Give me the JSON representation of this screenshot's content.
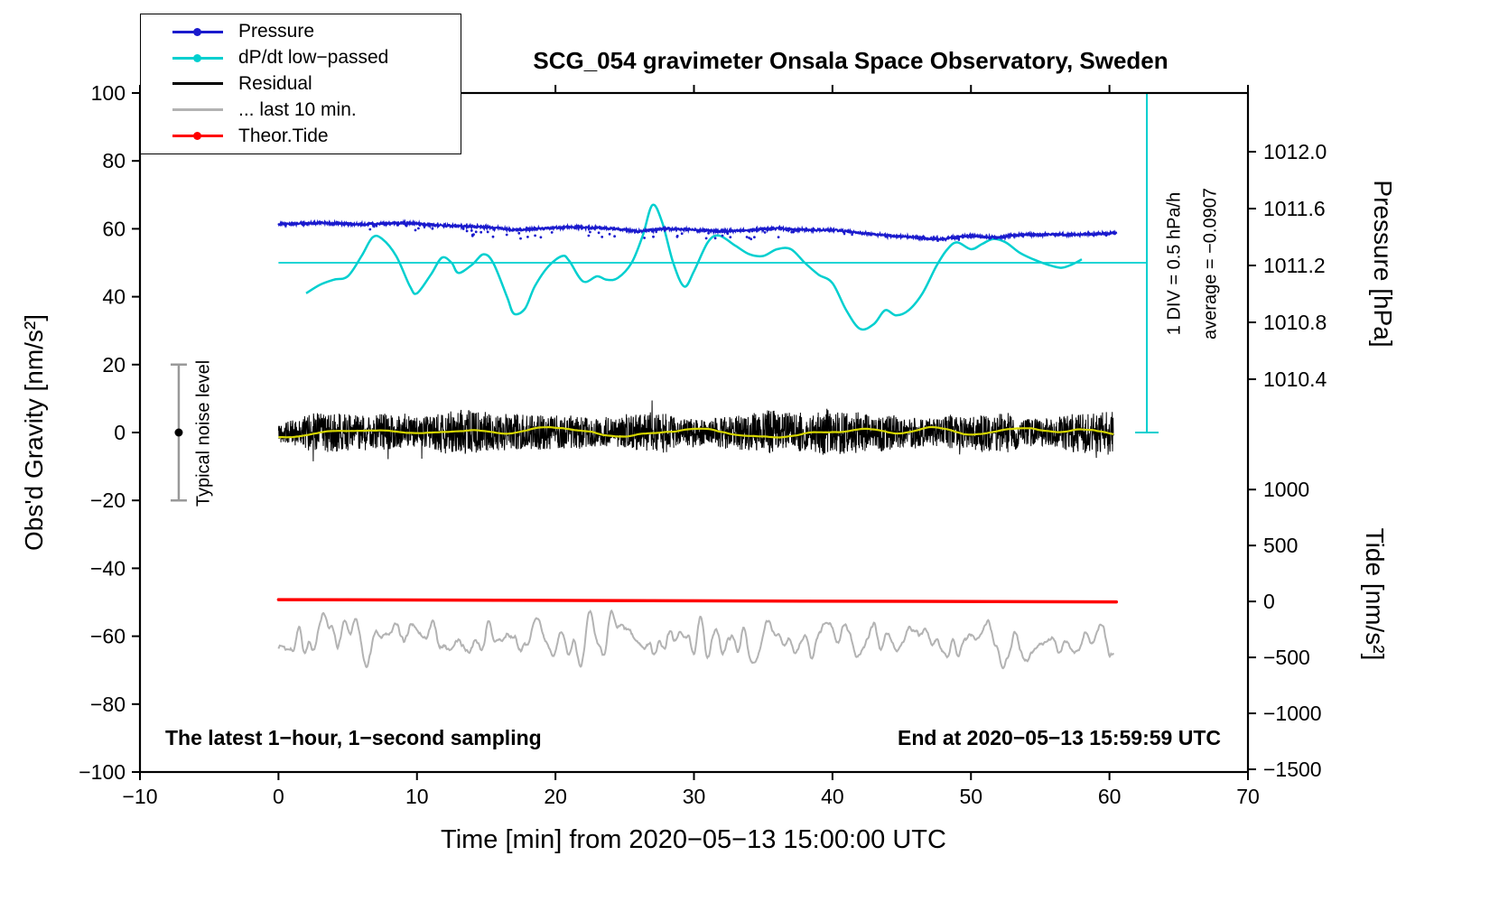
{
  "legend": {
    "items": [
      {
        "label": "Pressure",
        "color": "#1a1acd",
        "dot": true
      },
      {
        "label": "dP/dt low−passed",
        "color": "#00cfcf",
        "dot": true
      },
      {
        "label": "Residual",
        "color": "#000000",
        "dot": false
      },
      {
        "label": "... last 10 min.",
        "color": "#b3b3b3",
        "dot": false
      },
      {
        "label": "Theor.Tide",
        "color": "#ff0000",
        "dot": true
      }
    ]
  },
  "footer": {
    "left": "The latest 1−hour, 1−second sampling",
    "right": "End at 2020−05−13 15:59:59 UTC"
  },
  "chart_data": {
    "type": "line",
    "title": "SCG_054 gravimeter Onsala Space Observatory, Sweden",
    "xlabel": "Time [min] from 2020−05−13 15:00:00 UTC",
    "ylabel_left": "Obs'd Gravity [nm/s²]",
    "ylabel_right_pressure": "Pressure [hPa]",
    "ylabel_right_tide": "Tide [nm/s²]",
    "x_axis": {
      "min": -10,
      "max": 70,
      "tick_values": [
        -10,
        0,
        10,
        20,
        30,
        40,
        50,
        60,
        70
      ],
      "tick_labels": [
        "−10",
        "0",
        "10",
        "20",
        "30",
        "40",
        "50",
        "60",
        "70"
      ]
    },
    "y_axis_left": {
      "min": -100,
      "max": 100,
      "tick_values": [
        -100,
        -80,
        -60,
        -40,
        -20,
        0,
        20,
        40,
        60,
        80,
        100
      ],
      "tick_labels": [
        "−100",
        "−80",
        "−60",
        "−40",
        "−20",
        "0",
        "20",
        "40",
        "60",
        "80",
        "100"
      ]
    },
    "pressure_axis": {
      "tick_values": [
        1012.0,
        1011.6,
        1011.2,
        1010.8,
        1010.4
      ],
      "tick_labels": [
        "1012.0",
        "1011.6",
        "1011.2",
        "1010.8",
        "1010.4"
      ],
      "hpa_ref": 1010.4,
      "gravity_ref": 15.7,
      "gravity_per_hpa": 41.875
    },
    "tide_axis": {
      "tick_values": [
        1000,
        500,
        0,
        -500,
        -1000,
        -1500
      ],
      "tick_labels": [
        "1000",
        "500",
        "0",
        "−500",
        "−1000",
        "−1500"
      ],
      "tide_ref": 1000,
      "gravity_ref": -16.8,
      "gravity_per_unit": 0.03296
    },
    "annotations": {
      "scalebar_label_1": "1 DIV = 0.5 hPa/h",
      "scalebar_label_2": "average = −0.0907",
      "noise_label": "Typical noise level"
    },
    "series": {
      "pressure": {
        "name": "Pressure",
        "color": "#1a1acd",
        "unit": "hPa",
        "x": [
          0,
          3,
          6,
          9,
          12,
          15,
          17,
          19,
          21,
          24,
          26,
          28,
          30,
          32,
          34,
          36,
          38,
          40,
          42,
          44,
          45,
          47,
          48,
          49,
          50,
          51,
          52,
          53,
          54,
          55,
          56,
          57,
          58,
          59,
          60.5
        ],
        "values": [
          1011.49,
          1011.5,
          1011.49,
          1011.5,
          1011.48,
          1011.47,
          1011.45,
          1011.46,
          1011.47,
          1011.46,
          1011.44,
          1011.46,
          1011.45,
          1011.44,
          1011.45,
          1011.46,
          1011.45,
          1011.45,
          1011.43,
          1011.41,
          1011.405,
          1011.39,
          1011.385,
          1011.4,
          1011.41,
          1011.4,
          1011.395,
          1011.41,
          1011.42,
          1011.415,
          1011.42,
          1011.415,
          1011.42,
          1011.42,
          1011.43
        ],
        "jitter_hpa": 0.007
      },
      "dpdt": {
        "name": "dP/dt low−passed",
        "color": "#00cfcf",
        "unit": "gravity",
        "x": [
          2,
          3,
          4,
          5,
          6,
          6.8,
          7.5,
          8.5,
          9.5,
          10,
          11,
          11.8,
          12.5,
          13,
          14,
          14.8,
          15.5,
          16.5,
          17,
          17.8,
          18.5,
          19.5,
          20.5,
          21,
          22,
          23,
          23.7,
          24.5,
          25.5,
          26.3,
          27,
          27.7,
          28.5,
          29.3,
          30,
          31,
          31.8,
          33,
          34,
          35,
          36,
          37,
          38,
          39,
          40,
          41,
          42,
          43,
          43.8,
          44.6,
          45.5,
          46.5,
          47.5,
          48.3,
          49,
          50,
          50.8,
          51.6,
          52.5,
          53.5,
          54.5,
          55.5,
          56.5,
          57.3,
          58
        ],
        "values": [
          41,
          43.5,
          45,
          46,
          52,
          57.5,
          57,
          52,
          43,
          41,
          46.5,
          51.5,
          50,
          47,
          49.5,
          52.5,
          50,
          40,
          35,
          36.5,
          43,
          49,
          52,
          50.5,
          44.5,
          46,
          45,
          45.5,
          50,
          58,
          67,
          62,
          50,
          43,
          47.5,
          56,
          58,
          55,
          52.5,
          52,
          54,
          54,
          50,
          46.5,
          44,
          36,
          30.5,
          32,
          36,
          34.5,
          36,
          41,
          49,
          54,
          56,
          54,
          55.5,
          57,
          56,
          53,
          51,
          49.5,
          48.5,
          49.5,
          51
        ],
        "mean_value": 50,
        "mean_x_range": [
          0,
          62.7
        ]
      },
      "residual": {
        "name": "Residual",
        "color": "#000000",
        "unit": "gravity",
        "x_range": [
          0,
          60.3
        ],
        "mean": 0,
        "base_amplitude": 2.5,
        "var_amplitude": 6,
        "spike_probability": 0.004
      },
      "residual_smooth": {
        "name": "Residual smoothed",
        "color": "#d6d600",
        "amplitude": 1.6
      },
      "last10": {
        "name": "... last 10 min.",
        "color": "#b3b3b3",
        "unit": "gravity",
        "x_range": [
          0,
          60.3
        ],
        "mean": -61.5,
        "amplitude": 9
      },
      "tide": {
        "name": "Theor.Tide",
        "color": "#ff0000",
        "unit": "tide",
        "x": [
          0,
          30,
          60.5
        ],
        "values": [
          16,
          6,
          -4
        ]
      }
    },
    "scalebar": {
      "x": 62.7,
      "gravity_range": [
        0,
        100
      ],
      "color": "#00cfcf"
    },
    "noise_bar": {
      "x": -7.2,
      "gravity_range": [
        -20,
        20
      ],
      "color": "#999999"
    }
  }
}
